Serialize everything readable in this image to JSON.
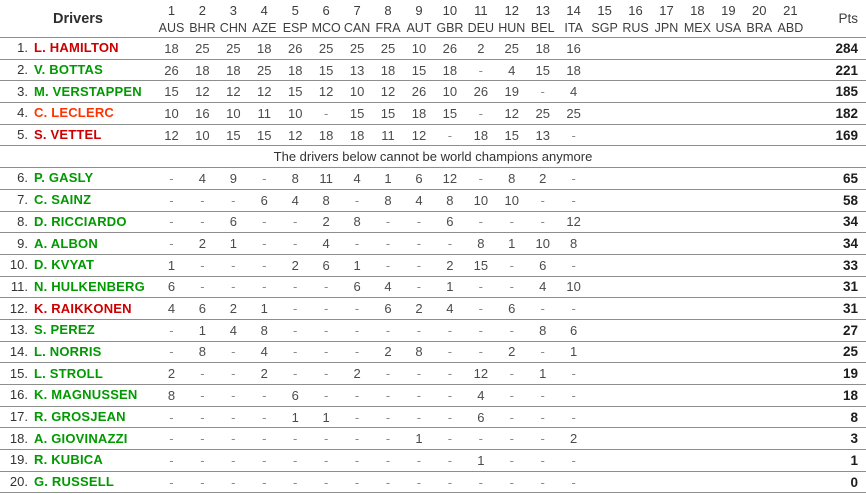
{
  "chart_data": {
    "type": "table",
    "header": {
      "drivers_label": "Drivers",
      "pts_label": "Pts"
    },
    "races": [
      {
        "num": "1",
        "code": "AUS"
      },
      {
        "num": "2",
        "code": "BHR"
      },
      {
        "num": "3",
        "code": "CHN"
      },
      {
        "num": "4",
        "code": "AZE"
      },
      {
        "num": "5",
        "code": "ESP"
      },
      {
        "num": "6",
        "code": "MCO"
      },
      {
        "num": "7",
        "code": "CAN"
      },
      {
        "num": "8",
        "code": "FRA"
      },
      {
        "num": "9",
        "code": "AUT"
      },
      {
        "num": "10",
        "code": "GBR"
      },
      {
        "num": "11",
        "code": "DEU"
      },
      {
        "num": "12",
        "code": "HUN"
      },
      {
        "num": "13",
        "code": "BEL"
      },
      {
        "num": "14",
        "code": "ITA"
      },
      {
        "num": "15",
        "code": "SGP"
      },
      {
        "num": "16",
        "code": "RUS"
      },
      {
        "num": "17",
        "code": "JPN"
      },
      {
        "num": "18",
        "code": "MEX"
      },
      {
        "num": "19",
        "code": "USA"
      },
      {
        "num": "20",
        "code": "BRA"
      },
      {
        "num": "21",
        "code": "ABD"
      }
    ],
    "separator_text": "The drivers below cannot be world champions anymore",
    "separator_after_rank": 5,
    "colors": {
      "red": "#cc0000",
      "orange": "#ff3300",
      "green": "#009a00"
    },
    "rows": [
      {
        "rank": "1.",
        "name": "L. HAMILTON",
        "color": "red",
        "cells": [
          "18",
          "25",
          "25",
          "18",
          "26",
          "25",
          "25",
          "25",
          "10",
          "26",
          "2",
          "25",
          "18",
          "16",
          "",
          "",
          "",
          "",
          "",
          "",
          ""
        ],
        "pts": "284"
      },
      {
        "rank": "2.",
        "name": "V. BOTTAS",
        "color": "green",
        "cells": [
          "26",
          "18",
          "18",
          "25",
          "18",
          "15",
          "13",
          "18",
          "15",
          "18",
          "-",
          "4",
          "15",
          "18",
          "",
          "",
          "",
          "",
          "",
          "",
          ""
        ],
        "pts": "221"
      },
      {
        "rank": "3.",
        "name": "M. VERSTAPPEN",
        "color": "green",
        "cells": [
          "15",
          "12",
          "12",
          "12",
          "15",
          "12",
          "10",
          "12",
          "26",
          "10",
          "26",
          "19",
          "-",
          "4",
          "",
          "",
          "",
          "",
          "",
          "",
          ""
        ],
        "pts": "185"
      },
      {
        "rank": "4.",
        "name": "C. LECLERC",
        "color": "orange",
        "cells": [
          "10",
          "16",
          "10",
          "11",
          "10",
          "-",
          "15",
          "15",
          "18",
          "15",
          "-",
          "12",
          "25",
          "25",
          "",
          "",
          "",
          "",
          "",
          "",
          ""
        ],
        "pts": "182"
      },
      {
        "rank": "5.",
        "name": "S. VETTEL",
        "color": "red",
        "cells": [
          "12",
          "10",
          "15",
          "15",
          "12",
          "18",
          "18",
          "11",
          "12",
          "-",
          "18",
          "15",
          "13",
          "-",
          "",
          "",
          "",
          "",
          "",
          "",
          ""
        ],
        "pts": "169"
      },
      {
        "rank": "6.",
        "name": "P. GASLY",
        "color": "green",
        "cells": [
          "-",
          "4",
          "9",
          "-",
          "8",
          "11",
          "4",
          "1",
          "6",
          "12",
          "-",
          "8",
          "2",
          "-",
          "",
          "",
          "",
          "",
          "",
          "",
          ""
        ],
        "pts": "65"
      },
      {
        "rank": "7.",
        "name": "C. SAINZ",
        "color": "green",
        "cells": [
          "-",
          "-",
          "-",
          "6",
          "4",
          "8",
          "-",
          "8",
          "4",
          "8",
          "10",
          "10",
          "-",
          "-",
          "",
          "",
          "",
          "",
          "",
          "",
          ""
        ],
        "pts": "58"
      },
      {
        "rank": "8.",
        "name": "D. RICCIARDO",
        "color": "green",
        "cells": [
          "-",
          "-",
          "6",
          "-",
          "-",
          "2",
          "8",
          "-",
          "-",
          "6",
          "-",
          "-",
          "-",
          "12",
          "",
          "",
          "",
          "",
          "",
          "",
          ""
        ],
        "pts": "34"
      },
      {
        "rank": "9.",
        "name": "A. ALBON",
        "color": "green",
        "cells": [
          "-",
          "2",
          "1",
          "-",
          "-",
          "4",
          "-",
          "-",
          "-",
          "-",
          "8",
          "1",
          "10",
          "8",
          "",
          "",
          "",
          "",
          "",
          "",
          ""
        ],
        "pts": "34"
      },
      {
        "rank": "10.",
        "name": "D. KVYAT",
        "color": "green",
        "cells": [
          "1",
          "-",
          "-",
          "-",
          "2",
          "6",
          "1",
          "-",
          "-",
          "2",
          "15",
          "-",
          "6",
          "-",
          "",
          "",
          "",
          "",
          "",
          "",
          ""
        ],
        "pts": "33"
      },
      {
        "rank": "11.",
        "name": "N. HULKENBERG",
        "color": "green",
        "cells": [
          "6",
          "-",
          "-",
          "-",
          "-",
          "-",
          "6",
          "4",
          "-",
          "1",
          "-",
          "-",
          "4",
          "10",
          "",
          "",
          "",
          "",
          "",
          "",
          ""
        ],
        "pts": "31"
      },
      {
        "rank": "12.",
        "name": "K. RAIKKONEN",
        "color": "red",
        "cells": [
          "4",
          "6",
          "2",
          "1",
          "-",
          "-",
          "-",
          "6",
          "2",
          "4",
          "-",
          "6",
          "-",
          "-",
          "",
          "",
          "",
          "",
          "",
          "",
          ""
        ],
        "pts": "31"
      },
      {
        "rank": "13.",
        "name": "S. PEREZ",
        "color": "green",
        "cells": [
          "-",
          "1",
          "4",
          "8",
          "-",
          "-",
          "-",
          "-",
          "-",
          "-",
          "-",
          "-",
          "8",
          "6",
          "",
          "",
          "",
          "",
          "",
          "",
          ""
        ],
        "pts": "27"
      },
      {
        "rank": "14.",
        "name": "L. NORRIS",
        "color": "green",
        "cells": [
          "-",
          "8",
          "-",
          "4",
          "-",
          "-",
          "-",
          "2",
          "8",
          "-",
          "-",
          "2",
          "-",
          "1",
          "",
          "",
          "",
          "",
          "",
          "",
          ""
        ],
        "pts": "25"
      },
      {
        "rank": "15.",
        "name": "L. STROLL",
        "color": "green",
        "cells": [
          "2",
          "-",
          "-",
          "2",
          "-",
          "-",
          "2",
          "-",
          "-",
          "-",
          "12",
          "-",
          "1",
          "-",
          "",
          "",
          "",
          "",
          "",
          "",
          ""
        ],
        "pts": "19"
      },
      {
        "rank": "16.",
        "name": "K. MAGNUSSEN",
        "color": "green",
        "cells": [
          "8",
          "-",
          "-",
          "-",
          "6",
          "-",
          "-",
          "-",
          "-",
          "-",
          "4",
          "-",
          "-",
          "-",
          "",
          "",
          "",
          "",
          "",
          "",
          ""
        ],
        "pts": "18"
      },
      {
        "rank": "17.",
        "name": "R. GROSJEAN",
        "color": "green",
        "cells": [
          "-",
          "-",
          "-",
          "-",
          "1",
          "1",
          "-",
          "-",
          "-",
          "-",
          "6",
          "-",
          "-",
          "-",
          "",
          "",
          "",
          "",
          "",
          "",
          ""
        ],
        "pts": "8"
      },
      {
        "rank": "18.",
        "name": "A. GIOVINAZZI",
        "color": "green",
        "cells": [
          "-",
          "-",
          "-",
          "-",
          "-",
          "-",
          "-",
          "-",
          "1",
          "-",
          "-",
          "-",
          "-",
          "2",
          "",
          "",
          "",
          "",
          "",
          "",
          ""
        ],
        "pts": "3"
      },
      {
        "rank": "19.",
        "name": "R. KUBICA",
        "color": "green",
        "cells": [
          "-",
          "-",
          "-",
          "-",
          "-",
          "-",
          "-",
          "-",
          "-",
          "-",
          "1",
          "-",
          "-",
          "-",
          "",
          "",
          "",
          "",
          "",
          "",
          ""
        ],
        "pts": "1"
      },
      {
        "rank": "20.",
        "name": "G. RUSSELL",
        "color": "green",
        "cells": [
          "-",
          "-",
          "-",
          "-",
          "-",
          "-",
          "-",
          "-",
          "-",
          "-",
          "-",
          "-",
          "-",
          "-",
          "",
          "",
          "",
          "",
          "",
          "",
          ""
        ],
        "pts": "0"
      }
    ]
  }
}
